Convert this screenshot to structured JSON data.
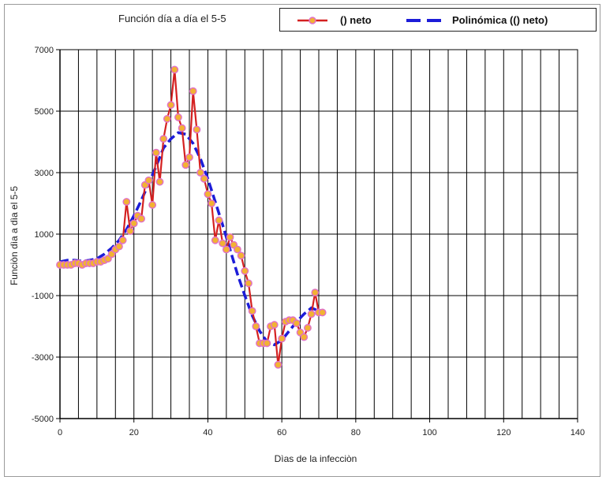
{
  "chart_data": {
    "type": "line",
    "title": "Función día a día el 5-5",
    "xlabel": "Dìas de la infecciòn",
    "ylabel": "Funciòn dìa a dìa el 5-5",
    "xlim": [
      0,
      140
    ],
    "ylim": [
      -5000,
      7000
    ],
    "xticks": [
      0,
      20,
      40,
      60,
      80,
      100,
      120,
      140
    ],
    "yticks": [
      -5000,
      -3000,
      -1000,
      1000,
      3000,
      5000,
      7000
    ],
    "x_grid_step": 5,
    "grid": true,
    "legend_position": "top-right",
    "series": [
      {
        "name": "() neto",
        "color": "#d42020",
        "marker_color": "#f2b233",
        "x": [
          0,
          1,
          2,
          3,
          4,
          5,
          6,
          7,
          8,
          9,
          10,
          11,
          12,
          13,
          14,
          15,
          16,
          17,
          18,
          19,
          20,
          21,
          22,
          23,
          24,
          25,
          26,
          27,
          28,
          29,
          30,
          31,
          32,
          33,
          34,
          35,
          36,
          37,
          38,
          39,
          40,
          41,
          42,
          43,
          44,
          45,
          46,
          47,
          48,
          49,
          50,
          51,
          52,
          53,
          54,
          55,
          56,
          57,
          58,
          59,
          60,
          61,
          62,
          63,
          64,
          65,
          66,
          67,
          68,
          69,
          70,
          71
        ],
        "y": [
          0,
          0,
          0,
          0,
          50,
          50,
          0,
          50,
          50,
          50,
          100,
          100,
          150,
          200,
          350,
          500,
          600,
          800,
          2050,
          1100,
          1350,
          1600,
          1500,
          2600,
          2750,
          1950,
          3650,
          2700,
          4100,
          4750,
          5200,
          6350,
          4800,
          4450,
          3250,
          3500,
          5650,
          4400,
          3000,
          2800,
          2300,
          2000,
          800,
          1450,
          700,
          500,
          900,
          650,
          500,
          300,
          -200,
          -600,
          -1500,
          -2000,
          -2550,
          -2550,
          -2550,
          -2000,
          -1950,
          -3250,
          -2400,
          -1850,
          -1800,
          -1800,
          -1900,
          -2200,
          -2350,
          -2050,
          -1600,
          -900,
          -1550,
          -1550
        ]
      },
      {
        "name": "Polinómica (() neto)",
        "color": "#1c1cd8",
        "x": [
          0,
          2,
          4,
          6,
          8,
          10,
          12,
          14,
          16,
          18,
          20,
          22,
          24,
          26,
          28,
          30,
          32,
          34,
          36,
          38,
          40,
          42,
          44,
          46,
          48,
          50,
          52,
          54,
          56,
          58,
          60,
          62,
          64,
          66,
          68,
          70
        ],
        "y": [
          100,
          150,
          150,
          120,
          150,
          200,
          350,
          550,
          800,
          1150,
          1600,
          2100,
          2650,
          3200,
          3800,
          4100,
          4300,
          4250,
          3950,
          3450,
          2800,
          2050,
          1300,
          500,
          -300,
          -1000,
          -1650,
          -2150,
          -2500,
          -2600,
          -2450,
          -2150,
          -1850,
          -1600,
          -1400,
          -1500
        ]
      }
    ]
  }
}
